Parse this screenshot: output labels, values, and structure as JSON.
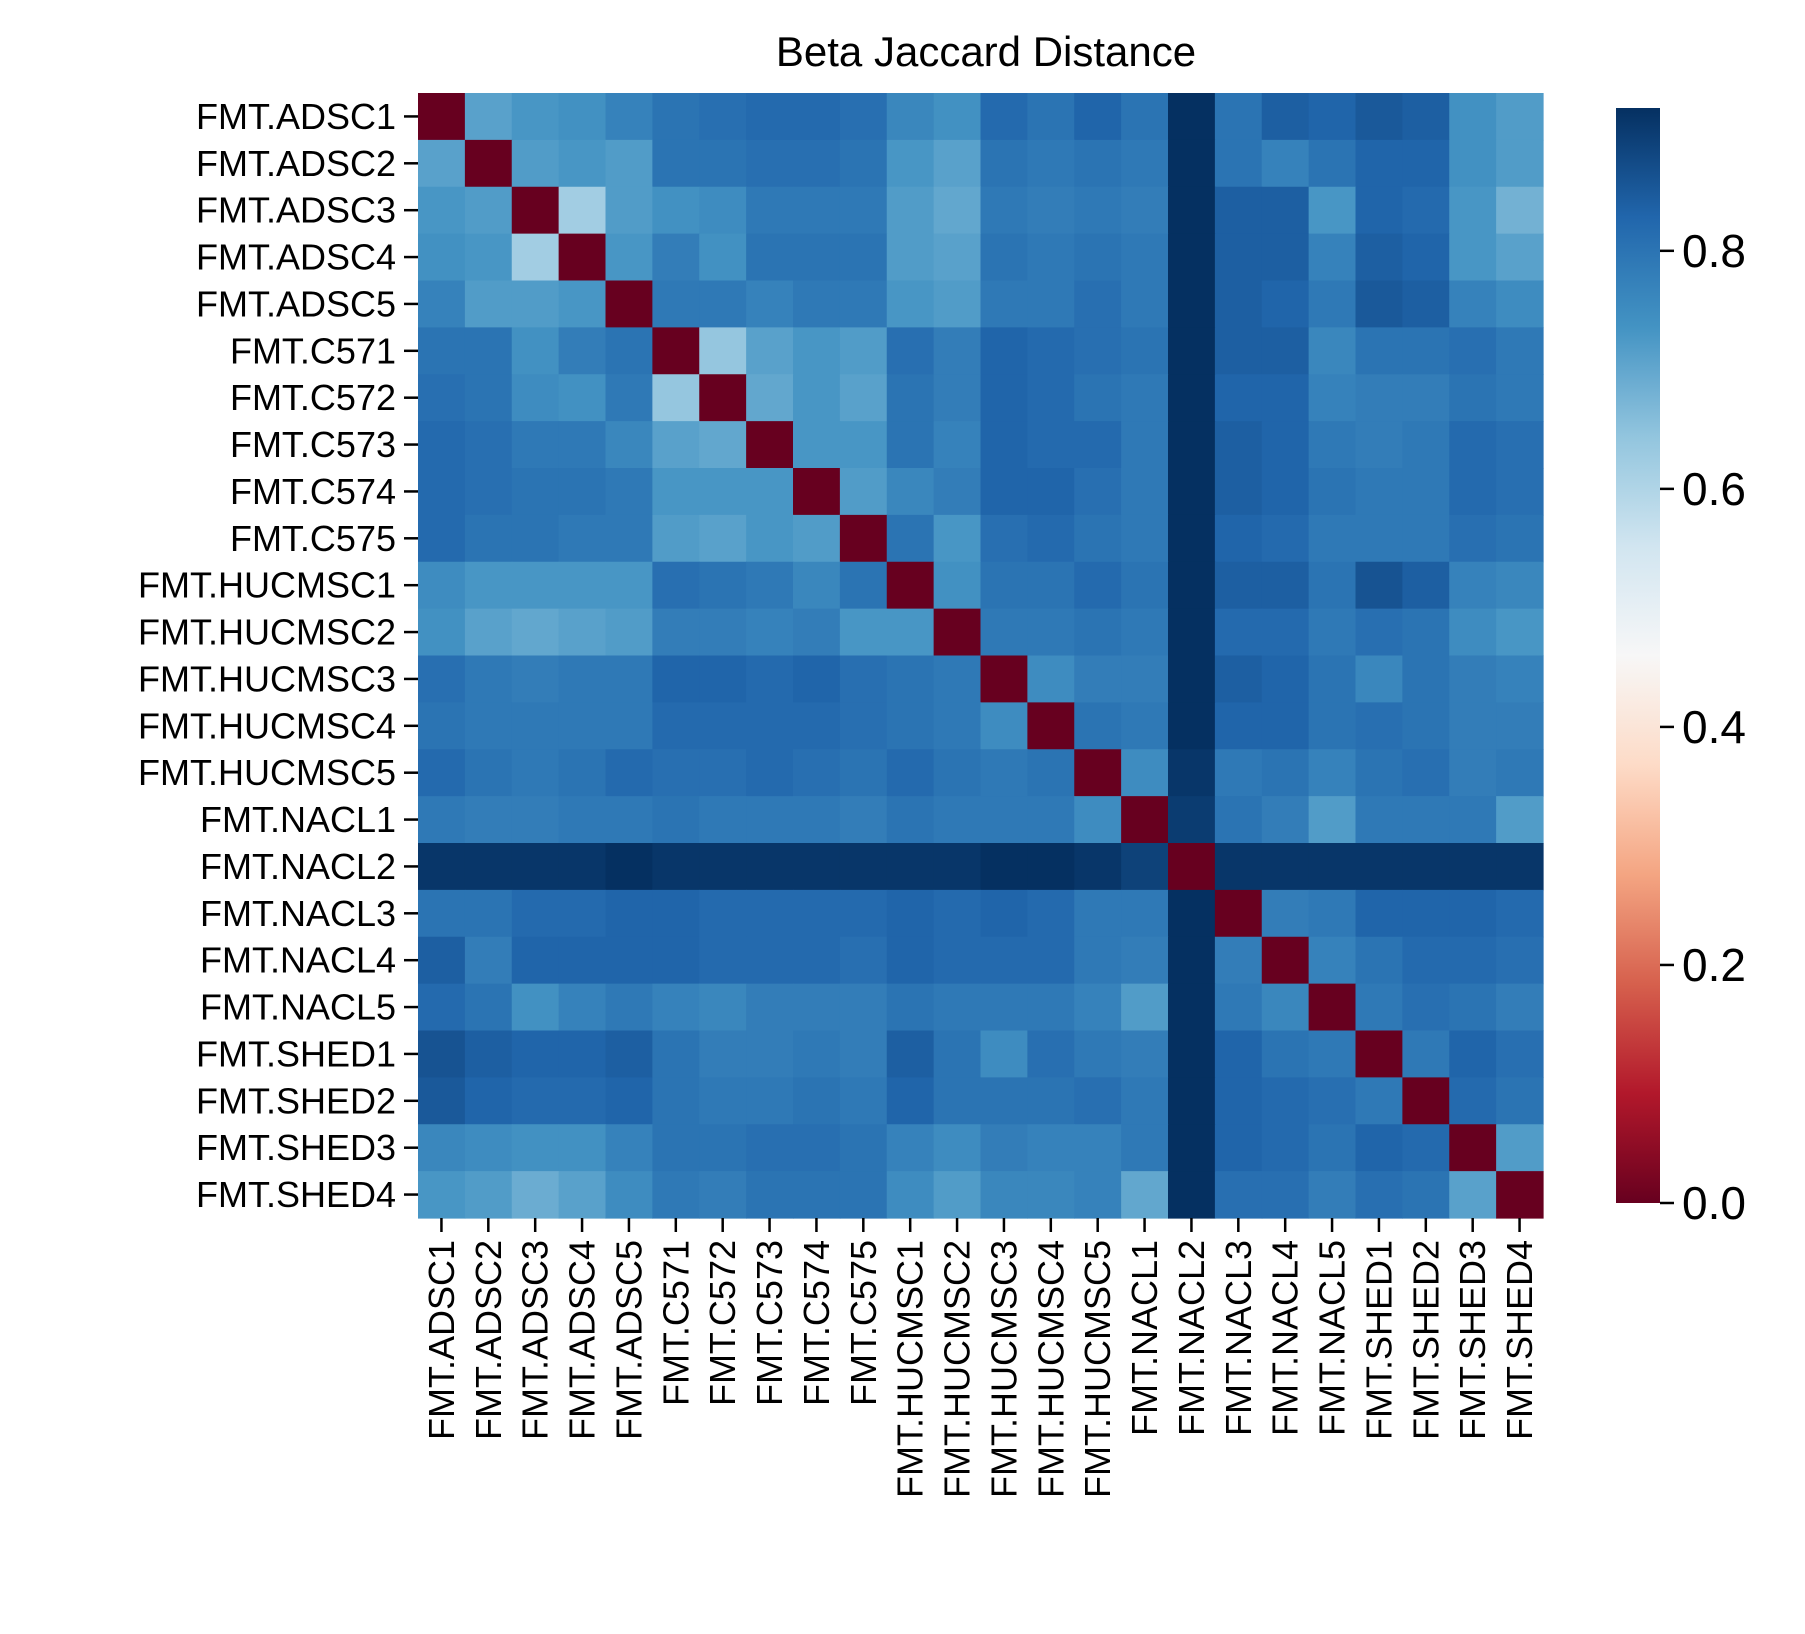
{
  "chart_data": {
    "type": "heatmap",
    "title": "Beta Jaccard Distance",
    "xlabel": "",
    "ylabel": "",
    "labels": [
      "FMT.ADSC1",
      "FMT.ADSC2",
      "FMT.ADSC3",
      "FMT.ADSC4",
      "FMT.ADSC5",
      "FMT.C571",
      "FMT.C572",
      "FMT.C573",
      "FMT.C574",
      "FMT.C575",
      "FMT.HUCMSC1",
      "FMT.HUCMSC2",
      "FMT.HUCMSC3",
      "FMT.HUCMSC4",
      "FMT.HUCMSC5",
      "FMT.NACL1",
      "FMT.NACL2",
      "FMT.NACL3",
      "FMT.NACL4",
      "FMT.NACL5",
      "FMT.SHED1",
      "FMT.SHED2",
      "FMT.SHED3",
      "FMT.SHED4"
    ],
    "colormap": "RdBu",
    "vmin": 0.0,
    "vmax": 0.92,
    "colorbar_ticks": [
      "0.0",
      "0.2",
      "0.4",
      "0.6",
      "0.8"
    ],
    "colorbar_tick_values": [
      0.0,
      0.2,
      0.4,
      0.6,
      0.8
    ],
    "matrix": [
      [
        0.0,
        0.71,
        0.73,
        0.74,
        0.77,
        0.8,
        0.81,
        0.82,
        0.82,
        0.81,
        0.76,
        0.74,
        0.82,
        0.8,
        0.83,
        0.8,
        0.92,
        0.8,
        0.84,
        0.83,
        0.85,
        0.84,
        0.74,
        0.72
      ],
      [
        0.71,
        0.0,
        0.72,
        0.73,
        0.72,
        0.8,
        0.8,
        0.81,
        0.81,
        0.8,
        0.73,
        0.71,
        0.8,
        0.79,
        0.8,
        0.79,
        0.92,
        0.8,
        0.77,
        0.8,
        0.83,
        0.83,
        0.74,
        0.72
      ],
      [
        0.73,
        0.72,
        0.0,
        0.62,
        0.72,
        0.74,
        0.75,
        0.79,
        0.79,
        0.79,
        0.72,
        0.7,
        0.79,
        0.78,
        0.79,
        0.78,
        0.92,
        0.84,
        0.84,
        0.73,
        0.83,
        0.82,
        0.73,
        0.68
      ],
      [
        0.74,
        0.73,
        0.62,
        0.0,
        0.73,
        0.78,
        0.74,
        0.8,
        0.8,
        0.8,
        0.72,
        0.71,
        0.8,
        0.79,
        0.8,
        0.79,
        0.92,
        0.84,
        0.84,
        0.77,
        0.84,
        0.83,
        0.73,
        0.71
      ],
      [
        0.77,
        0.72,
        0.72,
        0.73,
        0.0,
        0.79,
        0.79,
        0.77,
        0.79,
        0.79,
        0.73,
        0.72,
        0.79,
        0.79,
        0.81,
        0.79,
        0.92,
        0.84,
        0.83,
        0.79,
        0.85,
        0.84,
        0.77,
        0.75
      ],
      [
        0.8,
        0.8,
        0.74,
        0.78,
        0.8,
        0.0,
        0.64,
        0.71,
        0.73,
        0.72,
        0.81,
        0.78,
        0.83,
        0.82,
        0.81,
        0.8,
        0.92,
        0.84,
        0.84,
        0.76,
        0.8,
        0.8,
        0.81,
        0.79
      ],
      [
        0.81,
        0.8,
        0.75,
        0.74,
        0.79,
        0.64,
        0.0,
        0.7,
        0.73,
        0.71,
        0.8,
        0.78,
        0.83,
        0.82,
        0.8,
        0.79,
        0.92,
        0.83,
        0.83,
        0.77,
        0.78,
        0.78,
        0.8,
        0.79
      ],
      [
        0.82,
        0.81,
        0.79,
        0.79,
        0.76,
        0.71,
        0.7,
        0.0,
        0.73,
        0.73,
        0.8,
        0.77,
        0.83,
        0.82,
        0.82,
        0.79,
        0.92,
        0.84,
        0.83,
        0.79,
        0.78,
        0.79,
        0.82,
        0.81
      ],
      [
        0.82,
        0.81,
        0.8,
        0.8,
        0.79,
        0.73,
        0.73,
        0.73,
        0.0,
        0.72,
        0.76,
        0.78,
        0.83,
        0.83,
        0.81,
        0.79,
        0.92,
        0.84,
        0.83,
        0.8,
        0.79,
        0.79,
        0.82,
        0.81
      ],
      [
        0.82,
        0.8,
        0.8,
        0.79,
        0.79,
        0.72,
        0.71,
        0.73,
        0.72,
        0.0,
        0.8,
        0.73,
        0.81,
        0.82,
        0.8,
        0.79,
        0.92,
        0.83,
        0.82,
        0.79,
        0.79,
        0.79,
        0.81,
        0.8
      ],
      [
        0.75,
        0.73,
        0.73,
        0.73,
        0.73,
        0.81,
        0.8,
        0.79,
        0.76,
        0.8,
        0.0,
        0.74,
        0.8,
        0.8,
        0.82,
        0.8,
        0.92,
        0.84,
        0.84,
        0.8,
        0.86,
        0.84,
        0.77,
        0.76
      ],
      [
        0.74,
        0.71,
        0.7,
        0.71,
        0.72,
        0.78,
        0.78,
        0.77,
        0.78,
        0.73,
        0.73,
        0.0,
        0.79,
        0.79,
        0.8,
        0.79,
        0.92,
        0.82,
        0.82,
        0.79,
        0.81,
        0.8,
        0.75,
        0.73
      ],
      [
        0.81,
        0.79,
        0.78,
        0.79,
        0.79,
        0.83,
        0.83,
        0.82,
        0.83,
        0.81,
        0.8,
        0.79,
        0.0,
        0.75,
        0.78,
        0.78,
        0.92,
        0.84,
        0.83,
        0.8,
        0.76,
        0.8,
        0.78,
        0.77
      ],
      [
        0.8,
        0.79,
        0.79,
        0.79,
        0.79,
        0.82,
        0.82,
        0.82,
        0.82,
        0.81,
        0.8,
        0.79,
        0.75,
        0.0,
        0.8,
        0.79,
        0.92,
        0.83,
        0.83,
        0.8,
        0.81,
        0.8,
        0.78,
        0.78
      ],
      [
        0.82,
        0.8,
        0.79,
        0.8,
        0.82,
        0.81,
        0.81,
        0.82,
        0.81,
        0.8,
        0.82,
        0.8,
        0.79,
        0.8,
        0.0,
        0.75,
        0.91,
        0.79,
        0.8,
        0.77,
        0.8,
        0.81,
        0.78,
        0.79
      ],
      [
        0.79,
        0.78,
        0.78,
        0.79,
        0.79,
        0.8,
        0.79,
        0.79,
        0.79,
        0.78,
        0.8,
        0.79,
        0.79,
        0.79,
        0.75,
        0.0,
        0.9,
        0.8,
        0.78,
        0.72,
        0.79,
        0.79,
        0.79,
        0.72
      ],
      [
        0.91,
        0.91,
        0.91,
        0.91,
        0.92,
        0.91,
        0.91,
        0.91,
        0.91,
        0.91,
        0.91,
        0.91,
        0.92,
        0.92,
        0.91,
        0.89,
        0.0,
        0.91,
        0.91,
        0.91,
        0.91,
        0.91,
        0.91,
        0.91
      ],
      [
        0.8,
        0.8,
        0.82,
        0.82,
        0.83,
        0.83,
        0.82,
        0.82,
        0.82,
        0.82,
        0.83,
        0.82,
        0.83,
        0.82,
        0.79,
        0.79,
        0.92,
        0.0,
        0.78,
        0.79,
        0.83,
        0.83,
        0.83,
        0.82
      ],
      [
        0.84,
        0.78,
        0.83,
        0.83,
        0.83,
        0.83,
        0.82,
        0.82,
        0.82,
        0.81,
        0.83,
        0.82,
        0.82,
        0.82,
        0.79,
        0.78,
        0.92,
        0.78,
        0.0,
        0.77,
        0.8,
        0.82,
        0.82,
        0.81
      ],
      [
        0.82,
        0.8,
        0.74,
        0.77,
        0.79,
        0.77,
        0.76,
        0.78,
        0.78,
        0.78,
        0.8,
        0.79,
        0.79,
        0.79,
        0.77,
        0.72,
        0.92,
        0.79,
        0.76,
        0.0,
        0.79,
        0.81,
        0.8,
        0.78
      ],
      [
        0.86,
        0.84,
        0.83,
        0.83,
        0.84,
        0.8,
        0.78,
        0.78,
        0.79,
        0.78,
        0.84,
        0.8,
        0.75,
        0.81,
        0.79,
        0.78,
        0.92,
        0.83,
        0.8,
        0.79,
        0.0,
        0.79,
        0.83,
        0.81
      ],
      [
        0.85,
        0.83,
        0.82,
        0.82,
        0.83,
        0.8,
        0.79,
        0.79,
        0.8,
        0.79,
        0.83,
        0.8,
        0.8,
        0.8,
        0.81,
        0.79,
        0.92,
        0.83,
        0.82,
        0.81,
        0.79,
        0.0,
        0.82,
        0.8
      ],
      [
        0.76,
        0.75,
        0.74,
        0.74,
        0.77,
        0.8,
        0.8,
        0.81,
        0.81,
        0.8,
        0.77,
        0.75,
        0.78,
        0.77,
        0.77,
        0.79,
        0.92,
        0.83,
        0.82,
        0.8,
        0.83,
        0.82,
        0.0,
        0.72
      ],
      [
        0.73,
        0.72,
        0.69,
        0.71,
        0.75,
        0.79,
        0.78,
        0.8,
        0.8,
        0.8,
        0.75,
        0.72,
        0.76,
        0.76,
        0.77,
        0.7,
        0.92,
        0.81,
        0.81,
        0.78,
        0.81,
        0.8,
        0.71,
        0.0
      ]
    ]
  }
}
